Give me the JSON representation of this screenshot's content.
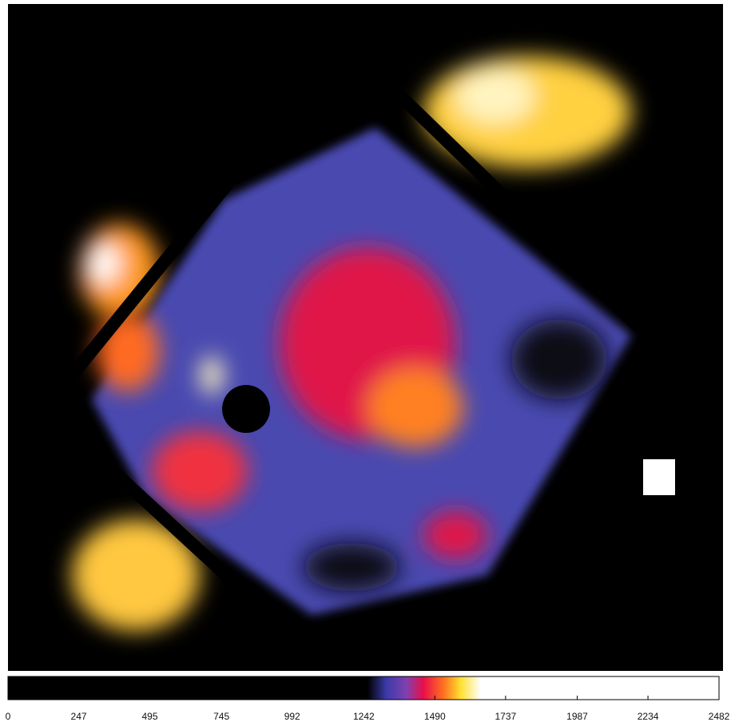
{
  "chart_data": {
    "type": "heatmap-image",
    "colorbar": {
      "lim": [
        0,
        2482
      ],
      "ticks": [
        0,
        247,
        495,
        745,
        992,
        1242,
        1490,
        1737,
        1987,
        2234,
        2482
      ],
      "colormap": [
        {
          "value": 0,
          "color": "#000000"
        },
        {
          "value": 1255,
          "color": "#000000"
        },
        {
          "value": 1320,
          "color": "#3a3aa8"
        },
        {
          "value": 1390,
          "color": "#8040b0"
        },
        {
          "value": 1450,
          "color": "#e8104a"
        },
        {
          "value": 1520,
          "color": "#ff7020"
        },
        {
          "value": 1580,
          "color": "#ffe030"
        },
        {
          "value": 1650,
          "color": "#ffffff"
        },
        {
          "value": 2482,
          "color": "#ffffff"
        }
      ]
    }
  }
}
